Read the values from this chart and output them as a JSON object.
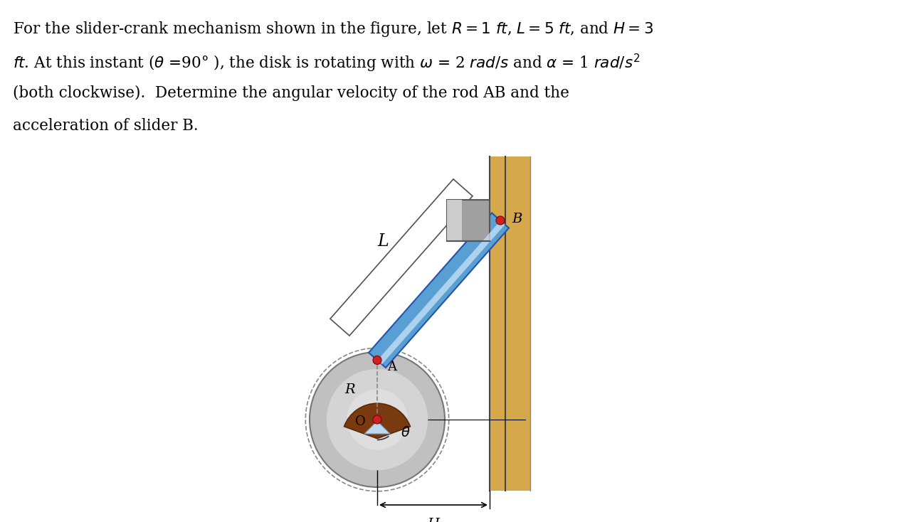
{
  "bg_color": "#ffffff",
  "fig_width": 12.66,
  "fig_height": 7.34,
  "pin_color": "#cc2222",
  "wall_color": "#D4A84B",
  "disk_gray": "#b0b0b0",
  "slider_gray": "#909090",
  "rod_blue": "#5599cc",
  "rod_light": "#aaccee",
  "text_lines": [
    "For the slider-crank mechanism shown in the figure, let $R = 1$ $\\it{ft}$, $L = 5$ $\\it{ft}$, and $H = 3$",
    "$\\it{ft}$. At this instant ($\\theta$ =90° ), the disk is rotating with $\\omega$ = 2 $\\it{rad/s}$ and $\\alpha$ = 1 $\\it{rad/s}^{2}$",
    "(both clockwise).  Determine the angular velocity of the rod AB and the",
    "acceleration of slider B."
  ]
}
